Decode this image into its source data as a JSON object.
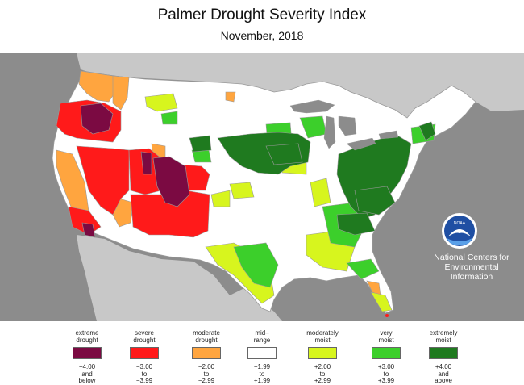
{
  "header": {
    "title": "Palmer Drought Severity Index",
    "subtitle": "November, 2018"
  },
  "logo": {
    "badge": "NOAA",
    "line1": "National Centers for",
    "line2": "Environmental",
    "line3": "Information"
  },
  "legend": [
    {
      "name1": "extreme",
      "name2": "drought",
      "r1": "−4.00",
      "r2": "and",
      "r3": "below",
      "color": "#7b0a42"
    },
    {
      "name1": "severe",
      "name2": "drought",
      "r1": "−3.00",
      "r2": "to",
      "r3": "−3.99",
      "color": "#ff1a1a"
    },
    {
      "name1": "moderate",
      "name2": "drought",
      "r1": "−2.00",
      "r2": "to",
      "r3": "−2.99",
      "color": "#ffa53f"
    },
    {
      "name1": "mid–",
      "name2": "range",
      "r1": "−1.99",
      "r2": "to",
      "r3": "+1.99",
      "color": "#ffffff"
    },
    {
      "name1": "moderately",
      "name2": "moist",
      "r1": "+2.00",
      "r2": "to",
      "r3": "+2.99",
      "color": "#d7f51e"
    },
    {
      "name1": "very",
      "name2": "moist",
      "r1": "+3.00",
      "r2": "to",
      "r3": "+3.99",
      "color": "#3ccf2b"
    },
    {
      "name1": "extremely",
      "name2": "moist",
      "r1": "+4.00",
      "r2": "and",
      "r3": "above",
      "color": "#1f7a1f"
    }
  ],
  "colors": {
    "ocean": "#8c8c8c",
    "land_outside": "#c8c8c8",
    "extreme_drought": "#7b0a42",
    "severe_drought": "#ff1a1a",
    "moderate_drought": "#ffa53f",
    "mid_range": "#ffffff",
    "moderately_moist": "#d7f51e",
    "very_moist": "#3ccf2b",
    "extremely_moist": "#1f7a1f"
  }
}
